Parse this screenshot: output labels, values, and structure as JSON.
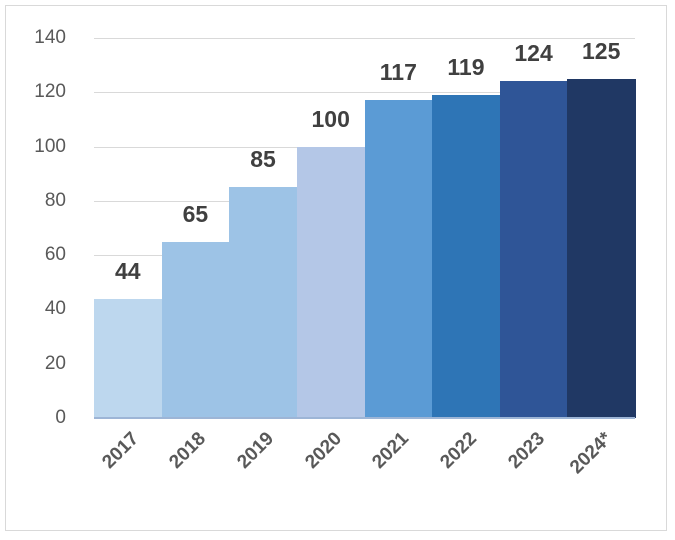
{
  "chart_data": {
    "type": "bar",
    "title": "",
    "xlabel": "",
    "ylabel": "",
    "categories": [
      "2017",
      "2018",
      "2019",
      "2020",
      "2021",
      "2022",
      "2023",
      "2024*"
    ],
    "values": [
      44,
      65,
      85,
      100,
      117,
      119,
      124,
      125
    ],
    "data_labels": [
      "44",
      "65",
      "85",
      "100",
      "117",
      "119",
      "124",
      "125"
    ],
    "bar_colors": [
      "#bdd7ee",
      "#9dc3e6",
      "#9dc3e6",
      "#b4c7e7",
      "#5b9bd5",
      "#2e75b6",
      "#2f5597",
      "#203864"
    ],
    "ylim": [
      0,
      140
    ],
    "yticks": [
      0,
      20,
      40,
      60,
      80,
      100,
      120,
      140
    ],
    "ytick_labels": [
      "0",
      "20",
      "40",
      "60",
      "80",
      "100",
      "120",
      "140"
    ],
    "grid": true,
    "legend": null,
    "bar_gap": 0
  }
}
